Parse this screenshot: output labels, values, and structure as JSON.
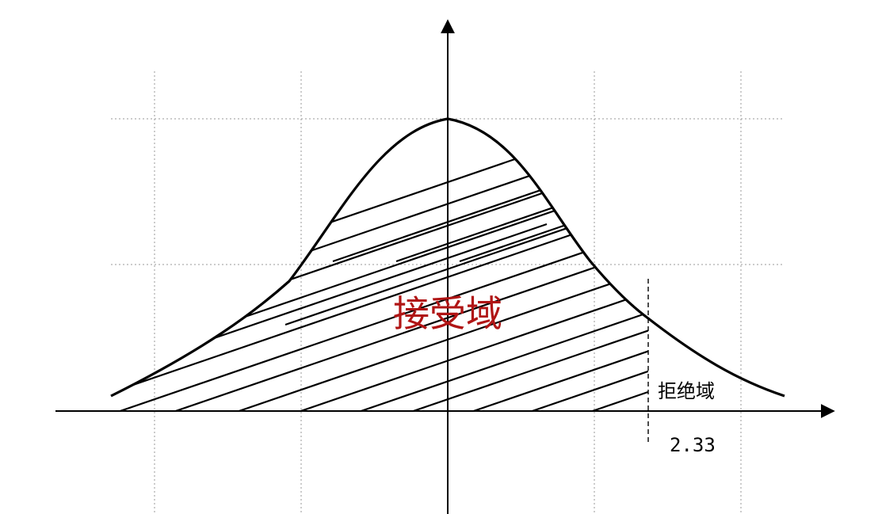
{
  "labels": {
    "acceptance_region": "接受域",
    "rejection_region": "拒绝域",
    "critical_value": "2.33"
  },
  "colors": {
    "acceptance_label": "#b01515",
    "curve": "#000000",
    "grid": "#9a9a9a"
  }
}
